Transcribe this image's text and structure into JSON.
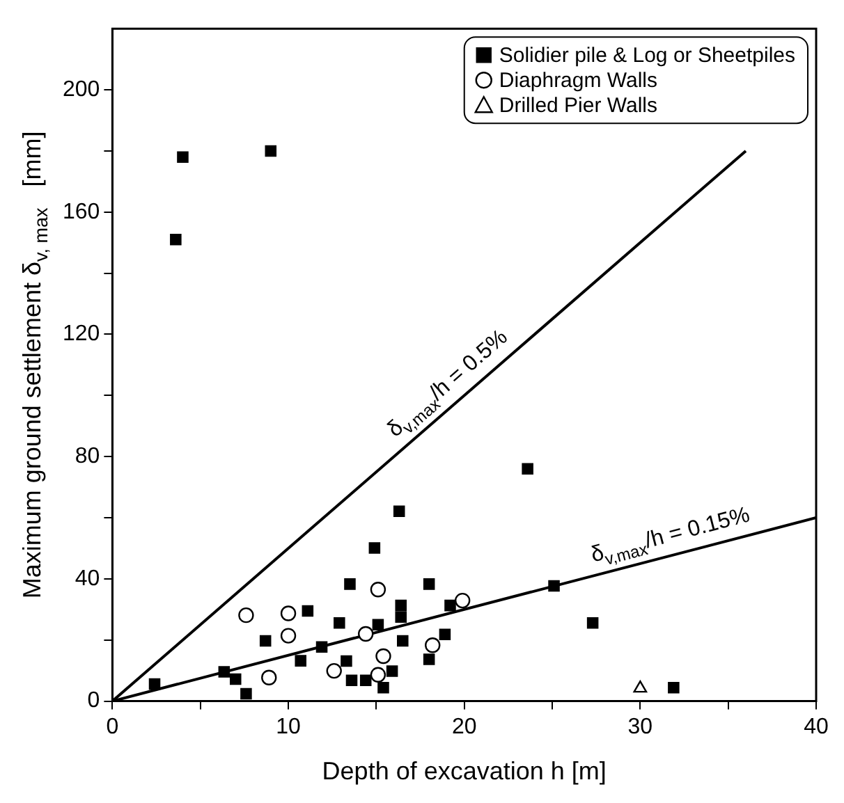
{
  "chart_data": {
    "type": "scatter",
    "xlabel": "Depth of excavation h [m]",
    "ylabel": "Maximum ground settlement δ$_{v, max}$   [mm]",
    "xlim": [
      0,
      40
    ],
    "ylim": [
      0,
      220
    ],
    "xticks": [
      0,
      {
        "value": 5,
        "label": null
      },
      10,
      {
        "value": 15,
        "label": null
      },
      20,
      {
        "value": 25,
        "label": null
      },
      30,
      {
        "value": 35,
        "label": null
      },
      40
    ],
    "yticks": [
      0,
      {
        "value": 20,
        "label": null
      },
      40,
      {
        "value": 60,
        "label": null
      },
      80,
      {
        "value": 100,
        "label": null
      },
      120,
      {
        "value": 140,
        "label": null
      },
      160,
      {
        "value": 180,
        "label": null
      },
      200
    ],
    "grid": false,
    "legend": "top right",
    "annotations": [
      "δ$_{v,max}$/h = 0.5%",
      "δ$_{v,max}$/h = 0.15%"
    ],
    "series": [
      {
        "name": "Solidier pile & Log or Sheetpiles",
        "color": "#000000",
        "marker": "square",
        "x": [
          4.0,
          3.6,
          9.0,
          2.4,
          6.35,
          7.0,
          7.6,
          8.7,
          10.7,
          11.1,
          11.9,
          12.9,
          13.3,
          13.5,
          13.6,
          14.4,
          14.9,
          15.1,
          15.4,
          15.9,
          16.3,
          16.4,
          16.4,
          16.5,
          18.0,
          18.0,
          18.9,
          19.2,
          23.6,
          25.1,
          27.3,
          31.9
        ],
        "values": [
          178,
          151,
          180,
          5.6,
          9.6,
          7.2,
          2.4,
          19.7,
          13.2,
          29.5,
          17.7,
          25.6,
          13.1,
          38.3,
          6.8,
          6.8,
          50.1,
          25.0,
          4.4,
          9.8,
          62.1,
          31.3,
          27.5,
          19.7,
          13.7,
          38.3,
          21.8,
          31.3,
          76,
          37.7,
          25.6,
          4.4
        ]
      },
      {
        "name": "Diaphragm Walls",
        "color": "#ffffff",
        "marker": "circle",
        "x": [
          7.6,
          8.9,
          10.0,
          10.0,
          12.6,
          14.4,
          15.1,
          15.4,
          15.1,
          18.2,
          19.9
        ],
        "values": [
          28.1,
          7.7,
          28.7,
          21.4,
          9.9,
          22.0,
          36.5,
          14.7,
          8.6,
          18.3,
          32.9
        ]
      },
      {
        "name": "Drilled Pier Walls",
        "color": "#ffffff",
        "marker": "triangle",
        "x": [
          30
        ],
        "values": [
          4.2
        ]
      },
      {
        "type": "line",
        "color": "#000000",
        "marker": "none",
        "x": [
          0,
          36
        ],
        "values": [
          0,
          180
        ]
      },
      {
        "type": "line",
        "color": "#000000",
        "marker": "none",
        "x": [
          0,
          40
        ],
        "values": [
          0,
          60
        ]
      }
    ]
  }
}
